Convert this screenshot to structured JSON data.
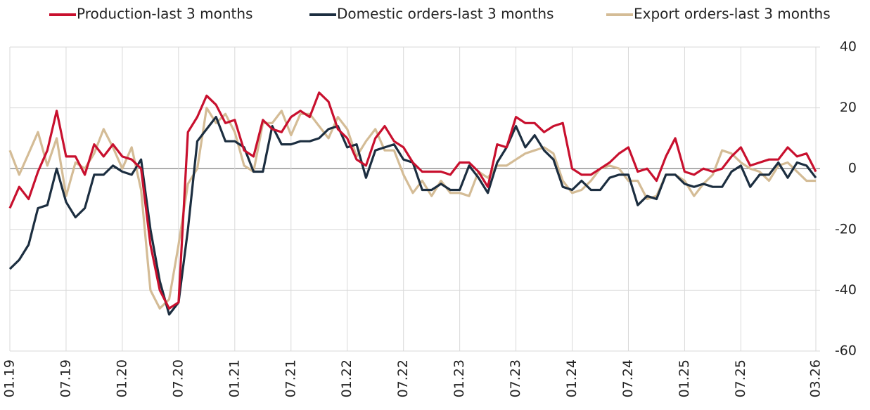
{
  "chart_data": {
    "type": "line",
    "categories": [
      "01.19",
      null,
      null,
      null,
      null,
      null,
      "07.19",
      null,
      null,
      null,
      null,
      null,
      "01.20",
      null,
      null,
      null,
      null,
      null,
      "07.20",
      null,
      null,
      null,
      null,
      null,
      "01.21",
      null,
      null,
      null,
      null,
      null,
      "07.21",
      null,
      null,
      null,
      null,
      null,
      "01.22",
      null,
      null,
      null,
      null,
      null,
      "07.22",
      null,
      null,
      null,
      null,
      null,
      "01.23",
      null,
      null,
      null,
      null,
      null,
      "07.23",
      null,
      null,
      null,
      null,
      null,
      "01.24",
      null,
      null,
      null,
      null,
      null,
      "07.24",
      null,
      null,
      null,
      null,
      null,
      "01.25",
      null,
      null,
      null,
      null,
      null,
      "07.25",
      null,
      null,
      null,
      null,
      null,
      null,
      null,
      "03.26"
    ],
    "series": [
      {
        "name": "Production-last 3 months",
        "color": "#c8102e",
        "values": [
          -13,
          -6,
          -10,
          -1,
          6,
          19,
          4,
          4,
          -2,
          8,
          4,
          8,
          4,
          3,
          0,
          -25,
          -40,
          -46,
          -44,
          12,
          17,
          24,
          21,
          15,
          16,
          6,
          4,
          16,
          13,
          12,
          17,
          19,
          17,
          25,
          22,
          13,
          10,
          3,
          1,
          10,
          14,
          9,
          7,
          2,
          -1,
          -1,
          -1,
          -2,
          2,
          2,
          -1,
          -6,
          8,
          7,
          17,
          15,
          15,
          12,
          14,
          15,
          0,
          -2,
          -2,
          0,
          2,
          5,
          7,
          -1,
          0,
          -4,
          4,
          10,
          -1,
          -2,
          0,
          -1,
          0,
          4,
          7,
          1,
          2,
          3,
          3,
          7,
          4,
          5,
          -1
        ]
      },
      {
        "name": "Domestic orders-last 3 months",
        "color": "#1c2e40",
        "values": [
          -33,
          -30,
          -25,
          -13,
          -12,
          0,
          -11,
          -16,
          -13,
          -2,
          -2,
          1,
          -1,
          -2,
          3,
          -20,
          -37,
          -48,
          -44,
          -20,
          9,
          13,
          17,
          9,
          9,
          7,
          -1,
          -1,
          14,
          8,
          8,
          9,
          9,
          10,
          13,
          14,
          7,
          8,
          -3,
          6,
          7,
          8,
          3,
          2,
          -7,
          -7,
          -5,
          -7,
          -7,
          1,
          -3,
          -8,
          2,
          7,
          14,
          7,
          11,
          6,
          3,
          -6,
          -7,
          -4,
          -7,
          -7,
          -3,
          -2,
          -2,
          -12,
          -9,
          -10,
          -2,
          -2,
          -5,
          -6,
          -5,
          -6,
          -6,
          -1,
          1,
          -6,
          -2,
          -2,
          2,
          -3,
          2,
          1,
          -3
        ]
      },
      {
        "name": "Export orders-last 3 months",
        "color": "#d4bc96",
        "values": [
          6,
          -2,
          5,
          12,
          1,
          10,
          -9,
          2,
          0,
          5,
          13,
          7,
          0,
          7,
          -7,
          -40,
          -46,
          -43,
          -25,
          -5,
          0,
          20,
          15,
          18,
          12,
          1,
          -1,
          15,
          15,
          19,
          11,
          18,
          18,
          14,
          10,
          17,
          13,
          4,
          9,
          13,
          6,
          6,
          -2,
          -8,
          -4,
          -9,
          -4,
          -8,
          -8,
          -9,
          -1,
          -3,
          1,
          1,
          3,
          5,
          6,
          7,
          5,
          -4,
          -8,
          -7,
          -4,
          0,
          1,
          0,
          -4,
          -4,
          -10,
          -9,
          -2,
          -2,
          -4,
          -9,
          -5,
          -2,
          6,
          5,
          2,
          0,
          -1,
          -4,
          1,
          2,
          -1,
          -4,
          -4
        ]
      }
    ],
    "ylim": [
      -60,
      40
    ],
    "yticks": [
      -60,
      -40,
      -20,
      0,
      20,
      40
    ],
    "grid": true,
    "legend": "top"
  }
}
